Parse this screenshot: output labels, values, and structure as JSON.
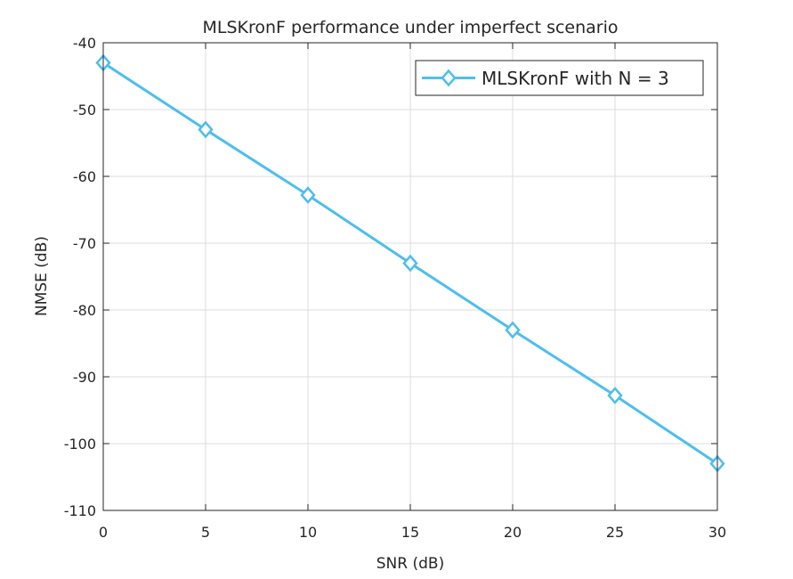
{
  "chart_data": {
    "type": "line",
    "title": "MLSKronF performance under imperfect scenario",
    "xlabel": "SNR (dB)",
    "ylabel": "NMSE (dB)",
    "xlim": [
      0,
      30
    ],
    "ylim": [
      -110,
      -40
    ],
    "xticks": [
      0,
      5,
      10,
      15,
      20,
      25,
      30
    ],
    "yticks": [
      -40,
      -50,
      -60,
      -70,
      -80,
      -90,
      -100,
      -110
    ],
    "grid": true,
    "legend_position": "top-right",
    "series": [
      {
        "name": "MLSKronF with N = 3",
        "color": "#4dbeee",
        "marker": "diamond",
        "x": [
          0,
          5,
          10,
          15,
          20,
          25,
          30
        ],
        "y": [
          -43.0,
          -53.0,
          -62.8,
          -73.0,
          -83.0,
          -92.8,
          -103.0
        ]
      }
    ]
  }
}
